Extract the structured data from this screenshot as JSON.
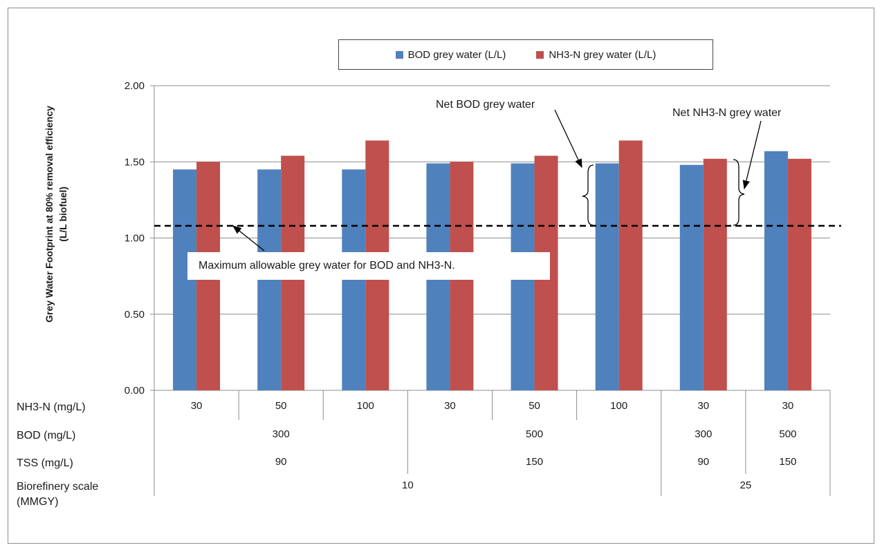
{
  "chart_data": {
    "type": "bar",
    "ylabel_line1": "Grey Water Footprint at 80% removal efficiency",
    "ylabel_line2": "(L/L biofuel)",
    "ylim": [
      0,
      2
    ],
    "yticks": [
      "0.00",
      "0.50",
      "1.00",
      "1.50",
      "2.00"
    ],
    "ytick_values": [
      0,
      0.5,
      1.0,
      1.5,
      2.0
    ],
    "grid": true,
    "legend_position": "top",
    "series": [
      {
        "name": "BOD grey water (L/L)",
        "color": "#4f81bd",
        "values": [
          1.45,
          1.45,
          1.45,
          1.49,
          1.49,
          1.49,
          1.48,
          1.57
        ]
      },
      {
        "name": "NH3-N grey water (L/L)",
        "color": "#c0504d",
        "values": [
          1.5,
          1.54,
          1.64,
          1.5,
          1.54,
          1.64,
          1.52,
          1.52
        ]
      }
    ],
    "reference_line": {
      "value": 1.08,
      "style": "dashed"
    },
    "annotations": {
      "max_allowable": "Maximum allowable grey water for BOD and NH3-N.",
      "net_bod": "Net BOD grey water",
      "net_nh3": "Net NH3-N grey water"
    },
    "category_table": {
      "rows": [
        {
          "label": "NH3-N (mg/L)",
          "cells": [
            "30",
            "50",
            "100",
            "30",
            "50",
            "100",
            "30",
            "30"
          ],
          "spans": [
            1,
            1,
            1,
            1,
            1,
            1,
            1,
            1
          ]
        },
        {
          "label": "BOD (mg/L)",
          "cells": [
            "300",
            "500",
            "300",
            "500"
          ],
          "spans": [
            3,
            3,
            1,
            1
          ]
        },
        {
          "label": "TSS (mg/L)",
          "cells": [
            "90",
            "150",
            "90",
            "150"
          ],
          "spans": [
            3,
            3,
            1,
            1
          ]
        },
        {
          "label": "Biorefinery scale\n(MMGY)",
          "cells": [
            "10",
            "25"
          ],
          "spans": [
            6,
            2
          ]
        }
      ]
    }
  }
}
